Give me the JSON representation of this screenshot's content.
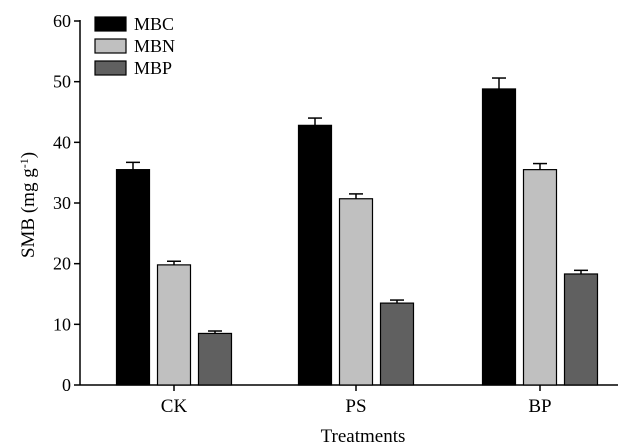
{
  "chart_data": {
    "type": "bar",
    "title": "",
    "xlabel": "Treatments",
    "ylabel": "SMB (mg g",
    "ylabel_sup": "-1",
    "ylabel_close": ")",
    "ylim": [
      0,
      60
    ],
    "yticks": [
      0,
      10,
      20,
      30,
      40,
      50,
      60
    ],
    "categories": [
      "CK",
      "PS",
      "BP"
    ],
    "legend_position": "top-left",
    "series": [
      {
        "name": "MBC",
        "color": "#000000",
        "values": [
          35.5,
          42.8,
          48.8
        ],
        "errors": [
          1.2,
          1.2,
          1.8
        ]
      },
      {
        "name": "MBN",
        "color": "#c0c0c0",
        "values": [
          19.8,
          30.7,
          35.5
        ],
        "errors": [
          0.6,
          0.8,
          1.0
        ]
      },
      {
        "name": "MBP",
        "color": "#606060",
        "values": [
          8.5,
          13.5,
          18.3
        ],
        "errors": [
          0.4,
          0.5,
          0.6
        ]
      }
    ]
  }
}
